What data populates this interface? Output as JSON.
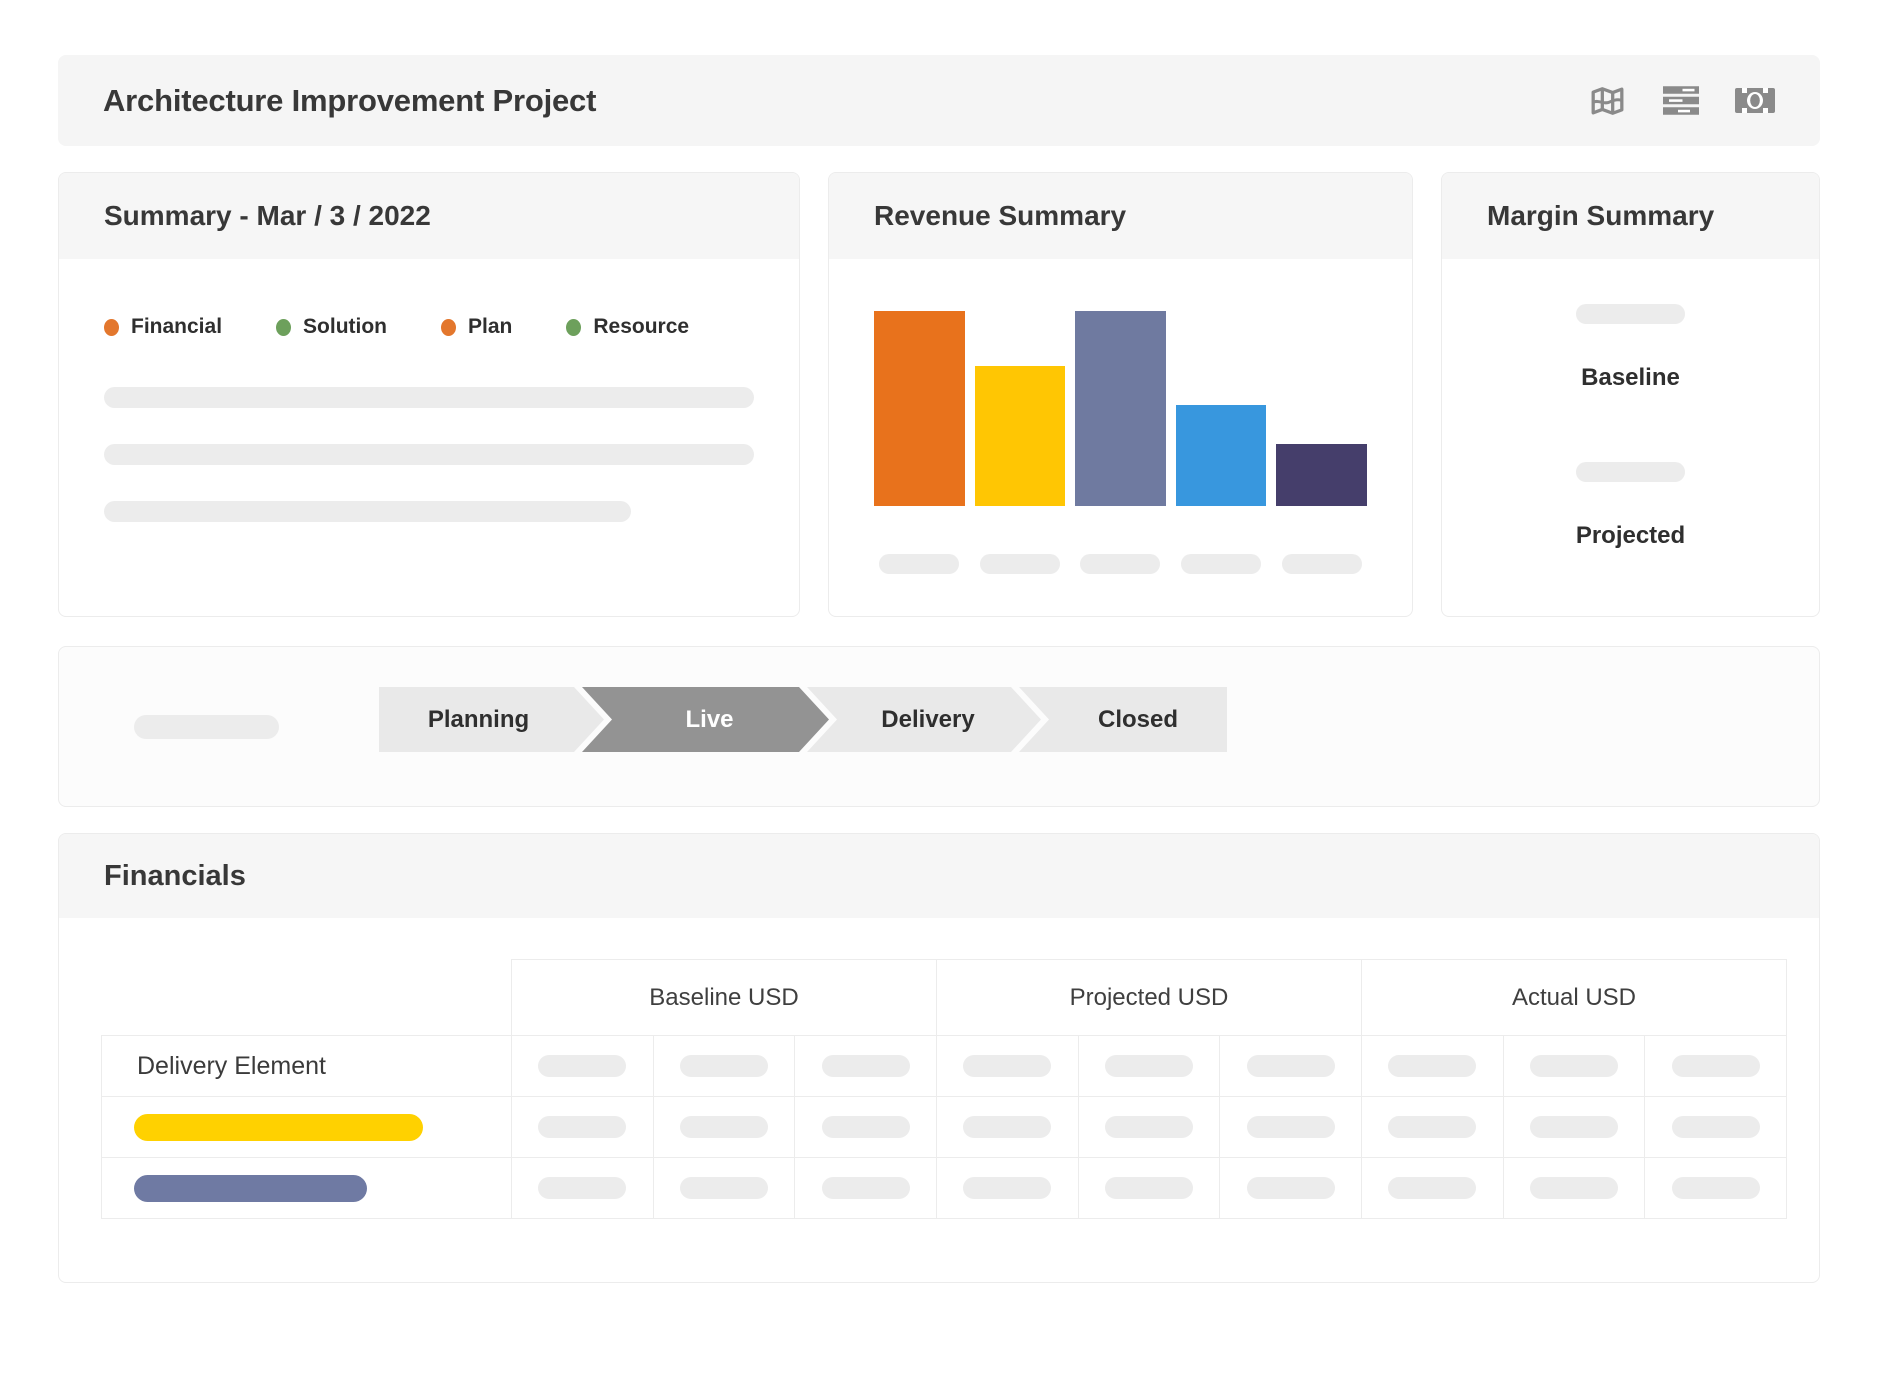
{
  "app_header": {
    "title": "Architecture Improvement Project",
    "icons": [
      "map-icon",
      "report-lines-icon",
      "money-bill-icon"
    ],
    "icon_color": "#8a8a8a"
  },
  "summary_card": {
    "title": "Summary - Mar / 3 / 2022",
    "legend": [
      {
        "label": "Financial",
        "color": "#E3772D"
      },
      {
        "label": "Solution",
        "color": "#6DA05C"
      },
      {
        "label": "Plan",
        "color": "#E3772D"
      },
      {
        "label": "Resource",
        "color": "#6DA05C"
      }
    ],
    "placeholders": [
      {
        "width": "100%"
      },
      {
        "width": "100%"
      },
      {
        "width": "81%"
      }
    ]
  },
  "revenue_card": {
    "title": "Revenue Summary",
    "chart_data": {
      "type": "bar",
      "title": "Revenue Summary",
      "categories": [
        "",
        "",
        "",
        "",
        ""
      ],
      "values": [
        100,
        72,
        100,
        52,
        32
      ],
      "value_unit": "percent_of_max_bar",
      "colors": [
        "#E8721C",
        "#FFC603",
        "#6F7AA0",
        "#3897DE",
        "#453E6B"
      ],
      "xlabel": "",
      "ylabel": "",
      "grid": false,
      "legend_position": "none",
      "x_tick_labels_are_placeholders": true
    }
  },
  "margin_card": {
    "title": "Margin Summary",
    "items": [
      {
        "label": "Baseline"
      },
      {
        "label": "Projected"
      }
    ]
  },
  "stages": {
    "steps": [
      {
        "label": "Planning",
        "active": false
      },
      {
        "label": "Live",
        "active": true
      },
      {
        "label": "Delivery",
        "active": false
      },
      {
        "label": "Closed",
        "active": false
      }
    ],
    "active_color": "#939393",
    "inactive_color": "#e9e9e9"
  },
  "financials": {
    "title": "Financials",
    "column_groups": [
      "Baseline USD",
      "Projected USD",
      "Actual USD"
    ],
    "columns_per_group": 3,
    "rows": [
      {
        "label_type": "text",
        "label": "Delivery Element"
      },
      {
        "label_type": "pill",
        "pill_color": "#FFD100",
        "pill_width": 289
      },
      {
        "label_type": "pill",
        "pill_color": "#6F7AA3",
        "pill_width": 233
      }
    ]
  }
}
